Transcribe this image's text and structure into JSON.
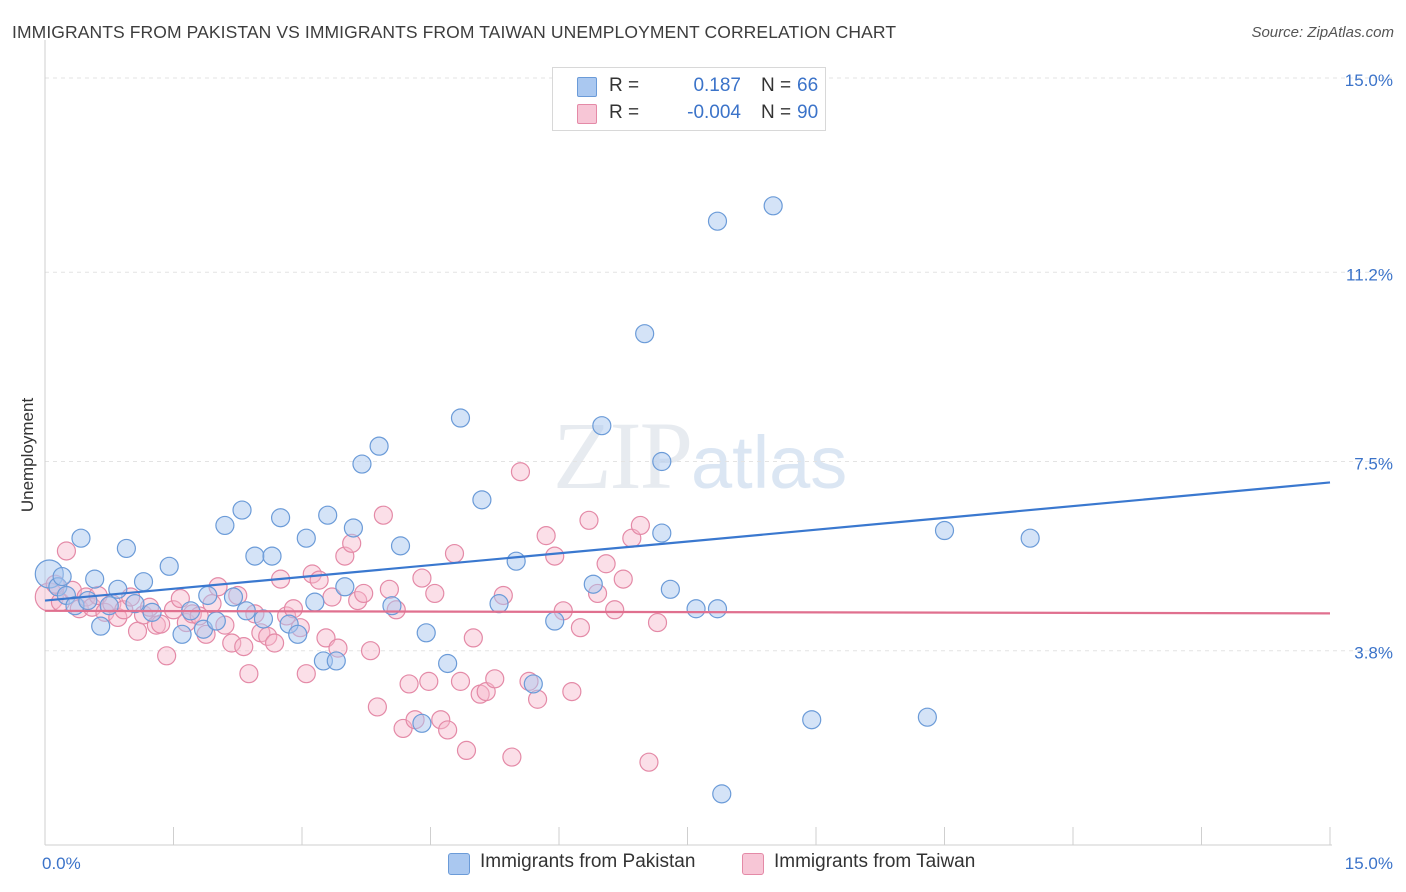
{
  "header": {
    "title": "IMMIGRANTS FROM PAKISTAN VS IMMIGRANTS FROM TAIWAN UNEMPLOYMENT CORRELATION CHART",
    "source": "Source: ZipAtlas.com"
  },
  "watermark": {
    "zip": "ZIP",
    "atlas": "atlas"
  },
  "legend": {
    "rows": [
      {
        "r_label": "R =",
        "r_value": "0.187",
        "n_label": "N =",
        "n_value": "66"
      },
      {
        "r_label": "R =",
        "r_value": "-0.004",
        "n_label": "N =",
        "n_value": "90"
      }
    ]
  },
  "bottom_legend": {
    "pakistan": "Immigrants from Pakistan",
    "taiwan": "Immigrants from Taiwan"
  },
  "colors": {
    "pakistan_fill": "#aac8f0",
    "pakistan_stroke": "#6b9bd8",
    "pakistan_line": "#3a78cf",
    "taiwan_fill": "#f7b8cc",
    "taiwan_stroke": "#e48aa7",
    "taiwan_line": "#e0708f",
    "tick_text": "#3b73c9"
  },
  "chart_data": {
    "type": "scatter",
    "title": "IMMIGRANTS FROM PAKISTAN VS IMMIGRANTS FROM TAIWAN UNEMPLOYMENT CORRELATION CHART",
    "xlabel": "",
    "ylabel": "Unemployment",
    "xlim": [
      0,
      15
    ],
    "ylim": [
      0,
      15
    ],
    "x_tick_labels": [
      "0.0%",
      "15.0%"
    ],
    "y_ticks": [
      3.8,
      7.5,
      11.2,
      15.0
    ],
    "y_tick_labels": [
      "3.8%",
      "7.5%",
      "11.2%",
      "15.0%"
    ],
    "grid": true,
    "legend_position": "top-center",
    "series": [
      {
        "name": "Immigrants from Pakistan",
        "r": 0.187,
        "n": 66,
        "trend": [
          [
            0.0,
            4.78
          ],
          [
            15.0,
            7.09
          ]
        ],
        "points": [
          [
            0.05,
            5.3
          ],
          [
            0.15,
            5.05
          ],
          [
            0.2,
            5.25
          ],
          [
            0.25,
            4.88
          ],
          [
            0.35,
            4.68
          ],
          [
            0.42,
            6.0
          ],
          [
            0.5,
            4.78
          ],
          [
            0.58,
            5.2
          ],
          [
            0.65,
            4.28
          ],
          [
            0.75,
            4.68
          ],
          [
            0.85,
            5.0
          ],
          [
            0.95,
            5.8
          ],
          [
            1.05,
            4.72
          ],
          [
            1.15,
            5.15
          ],
          [
            1.25,
            4.55
          ],
          [
            1.45,
            5.45
          ],
          [
            1.6,
            4.12
          ],
          [
            1.7,
            4.58
          ],
          [
            1.85,
            4.22
          ],
          [
            1.9,
            4.88
          ],
          [
            2.0,
            4.38
          ],
          [
            2.1,
            6.25
          ],
          [
            2.2,
            4.85
          ],
          [
            2.3,
            6.55
          ],
          [
            2.35,
            4.58
          ],
          [
            2.45,
            5.65
          ],
          [
            2.55,
            4.42
          ],
          [
            2.65,
            5.65
          ],
          [
            2.75,
            6.4
          ],
          [
            2.85,
            4.32
          ],
          [
            2.95,
            4.12
          ],
          [
            3.05,
            6.0
          ],
          [
            3.15,
            4.75
          ],
          [
            3.25,
            3.6
          ],
          [
            3.3,
            6.45
          ],
          [
            3.4,
            3.6
          ],
          [
            3.5,
            5.05
          ],
          [
            3.6,
            6.2
          ],
          [
            3.7,
            7.45
          ],
          [
            3.9,
            7.8
          ],
          [
            4.05,
            4.68
          ],
          [
            4.15,
            5.85
          ],
          [
            4.4,
            2.38
          ],
          [
            4.45,
            4.15
          ],
          [
            4.7,
            3.55
          ],
          [
            4.85,
            8.35
          ],
          [
            5.1,
            6.75
          ],
          [
            5.3,
            4.72
          ],
          [
            5.5,
            5.55
          ],
          [
            5.7,
            3.15
          ],
          [
            5.95,
            4.38
          ],
          [
            6.4,
            5.1
          ],
          [
            6.5,
            8.2
          ],
          [
            7.0,
            10.0
          ],
          [
            7.2,
            7.5
          ],
          [
            7.2,
            6.1
          ],
          [
            7.3,
            5.0
          ],
          [
            7.6,
            4.62
          ],
          [
            7.85,
            12.2
          ],
          [
            7.85,
            4.62
          ],
          [
            7.9,
            1.0
          ],
          [
            8.5,
            12.5
          ],
          [
            8.95,
            2.45
          ],
          [
            10.3,
            2.5
          ],
          [
            10.5,
            6.15
          ],
          [
            11.5,
            6.0
          ]
        ]
      },
      {
        "name": "Immigrants from Taiwan",
        "r": -0.004,
        "n": 90,
        "trend": [
          [
            0.0,
            4.58
          ],
          [
            15.0,
            4.53
          ]
        ],
        "points": [
          [
            0.05,
            4.85
          ],
          [
            0.12,
            5.1
          ],
          [
            0.18,
            4.75
          ],
          [
            0.25,
            5.75
          ],
          [
            0.32,
            4.98
          ],
          [
            0.4,
            4.62
          ],
          [
            0.48,
            4.85
          ],
          [
            0.55,
            4.65
          ],
          [
            0.62,
            4.88
          ],
          [
            0.7,
            4.55
          ],
          [
            0.78,
            4.72
          ],
          [
            0.85,
            4.45
          ],
          [
            0.92,
            4.6
          ],
          [
            1.0,
            4.85
          ],
          [
            1.08,
            4.18
          ],
          [
            1.15,
            4.5
          ],
          [
            1.22,
            4.65
          ],
          [
            1.3,
            4.3
          ],
          [
            1.35,
            4.32
          ],
          [
            1.42,
            3.7
          ],
          [
            1.5,
            4.6
          ],
          [
            1.58,
            4.82
          ],
          [
            1.65,
            4.35
          ],
          [
            1.72,
            4.52
          ],
          [
            1.8,
            4.48
          ],
          [
            1.88,
            4.12
          ],
          [
            1.95,
            4.72
          ],
          [
            2.02,
            5.05
          ],
          [
            2.1,
            4.3
          ],
          [
            2.18,
            3.95
          ],
          [
            2.25,
            4.88
          ],
          [
            2.32,
            3.88
          ],
          [
            2.38,
            3.35
          ],
          [
            2.45,
            4.52
          ],
          [
            2.52,
            4.15
          ],
          [
            2.6,
            4.08
          ],
          [
            2.68,
            3.95
          ],
          [
            2.75,
            5.2
          ],
          [
            2.82,
            4.48
          ],
          [
            2.9,
            4.62
          ],
          [
            2.98,
            4.25
          ],
          [
            3.05,
            3.35
          ],
          [
            3.12,
            5.3
          ],
          [
            3.2,
            5.18
          ],
          [
            3.28,
            4.05
          ],
          [
            3.35,
            4.85
          ],
          [
            3.42,
            3.85
          ],
          [
            3.5,
            5.65
          ],
          [
            3.58,
            5.9
          ],
          [
            3.65,
            4.78
          ],
          [
            3.72,
            4.92
          ],
          [
            3.8,
            3.8
          ],
          [
            3.88,
            2.7
          ],
          [
            3.95,
            6.45
          ],
          [
            4.02,
            5.0
          ],
          [
            4.1,
            4.6
          ],
          [
            4.18,
            2.28
          ],
          [
            4.25,
            3.15
          ],
          [
            4.32,
            2.45
          ],
          [
            4.4,
            5.22
          ],
          [
            4.48,
            3.2
          ],
          [
            4.55,
            4.92
          ],
          [
            4.62,
            2.45
          ],
          [
            4.7,
            2.25
          ],
          [
            4.78,
            5.7
          ],
          [
            4.85,
            3.2
          ],
          [
            4.92,
            1.85
          ],
          [
            5.0,
            4.05
          ],
          [
            5.08,
            2.95
          ],
          [
            5.15,
            3.0
          ],
          [
            5.25,
            3.25
          ],
          [
            5.35,
            4.88
          ],
          [
            5.45,
            1.72
          ],
          [
            5.55,
            7.3
          ],
          [
            5.65,
            3.2
          ],
          [
            5.75,
            2.85
          ],
          [
            5.85,
            6.05
          ],
          [
            5.95,
            5.65
          ],
          [
            6.05,
            4.58
          ],
          [
            6.15,
            3.0
          ],
          [
            6.25,
            4.25
          ],
          [
            6.35,
            6.35
          ],
          [
            6.45,
            4.92
          ],
          [
            6.55,
            5.5
          ],
          [
            6.65,
            4.6
          ],
          [
            6.75,
            5.2
          ],
          [
            6.85,
            6.0
          ],
          [
            6.95,
            6.25
          ],
          [
            7.05,
            1.62
          ],
          [
            7.15,
            4.35
          ]
        ]
      }
    ]
  }
}
